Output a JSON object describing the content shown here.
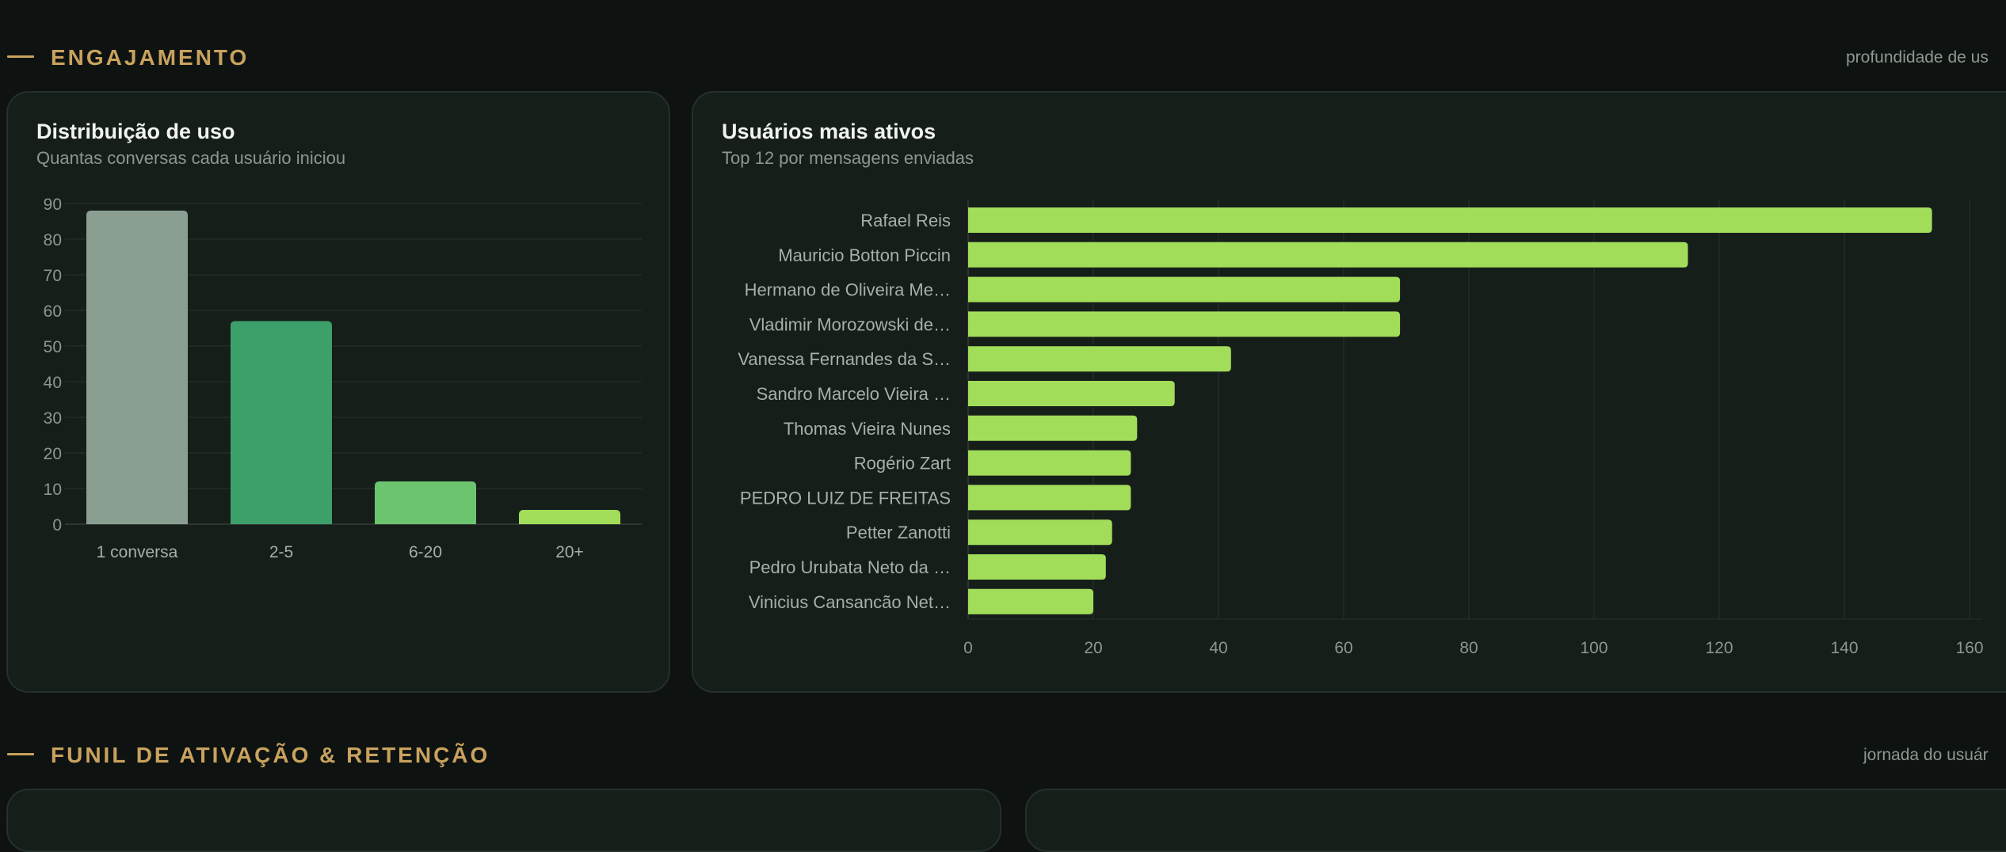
{
  "sections": [
    {
      "title": "ENGAJAMENTO",
      "hint": "profundidade de us"
    },
    {
      "title": "FUNIL DE ATIVAÇÃO & RETENÇÃO",
      "hint": "jornada do usuár"
    }
  ],
  "cards": {
    "distribution": {
      "title": "Distribuição de uso",
      "subtitle": "Quantas conversas cada usuário iniciou"
    },
    "top_users": {
      "title": "Usuários mais ativos",
      "subtitle": "Top 12 por mensagens enviadas"
    }
  },
  "colors": {
    "accent": "#c9a25e",
    "bar_gray": "#8a9f92",
    "bar_green": "#3da06b",
    "bar_light_green": "#6cc46f",
    "bar_lime": "#a2dd5a"
  },
  "chart_data": [
    {
      "type": "bar",
      "orientation": "vertical",
      "categories": [
        "1 conversa",
        "2-5",
        "6-20",
        "20+"
      ],
      "values": [
        88,
        57,
        12,
        4
      ],
      "bar_colors": [
        "#8a9f92",
        "#3da06b",
        "#6cc46f",
        "#a2dd5a"
      ],
      "yticks": [
        0,
        10,
        20,
        30,
        40,
        50,
        60,
        70,
        80,
        90
      ],
      "ylim": [
        0,
        90
      ],
      "grid": true
    },
    {
      "type": "bar",
      "orientation": "horizontal",
      "categories": [
        "Rafael Reis",
        "Mauricio Botton Piccin",
        "Hermano de Oliveira Me…",
        "Vladimir Morozowski de…",
        "Vanessa Fernandes da S…",
        "Sandro Marcelo Vieira …",
        "Thomas Vieira Nunes",
        "Rogério Zart",
        "PEDRO LUIZ DE FREITAS",
        "Petter Zanotti",
        "Pedro Urubata Neto da …",
        "Vinicius Cansancão Net…"
      ],
      "values": [
        154,
        115,
        69,
        69,
        42,
        33,
        27,
        26,
        26,
        23,
        22,
        20
      ],
      "xticks": [
        0,
        20,
        40,
        60,
        80,
        100,
        120,
        140,
        160
      ],
      "xlim": [
        0,
        160
      ],
      "grid": true,
      "color": "#a2dd5a"
    }
  ]
}
